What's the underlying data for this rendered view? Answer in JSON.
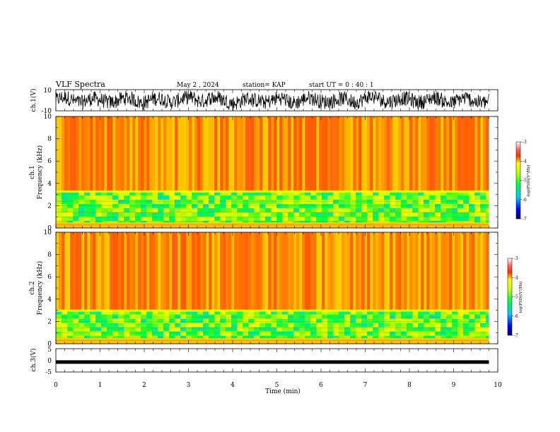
{
  "header": {
    "title": "VLF Spectra",
    "date": "May 2  , 2024",
    "station": "station= KAP",
    "start": "start  UT =   0 : 40 : 1"
  },
  "chart_data": [
    {
      "type": "line",
      "name": "ch1-waveform",
      "ylabel": "ch.1(V)",
      "ylim": [
        -10,
        10
      ],
      "yticks": [
        "10",
        "-10"
      ],
      "xlim": [
        0,
        10
      ],
      "description_values": {
        "range_min": -10,
        "range_max": 10,
        "end_time_min": 9.8
      }
    },
    {
      "type": "heatmap",
      "name": "ch1-spectrogram",
      "ylabel": "ch.1\nFrequency  (kHz)",
      "ylabel_lines": [
        "ch.1",
        "Frequency  (kHz)"
      ],
      "ylim": [
        0,
        10
      ],
      "yticks": [
        "0",
        "2",
        "4",
        "6",
        "8",
        "10"
      ],
      "xlim": [
        0,
        10
      ],
      "colorbar": {
        "label": "log(PSD)(V²/Hz)",
        "ticks": [
          "-3",
          "-4",
          "-5",
          "-6",
          "-7"
        ],
        "range": [
          -7,
          -3
        ]
      },
      "bands": [
        {
          "from_khz": 3.3,
          "to_khz": 10,
          "log_psd": -3.9
        },
        {
          "from_khz": 0.5,
          "to_khz": 3.3,
          "log_psd": -4.9
        },
        {
          "from_khz": 0,
          "to_khz": 0.5,
          "log_psd": -4.0
        }
      ]
    },
    {
      "type": "heatmap",
      "name": "ch2-spectrogram",
      "ylabel_lines": [
        "ch.2",
        "Frequency  (kHz)"
      ],
      "ylim": [
        0,
        10
      ],
      "yticks": [
        "0",
        "2",
        "4",
        "6",
        "8",
        "10"
      ],
      "xlim": [
        0,
        10
      ],
      "colorbar": {
        "label": "log(PSD)(V²/Hz)",
        "ticks": [
          "-3",
          "-4",
          "-5",
          "-6",
          "-7"
        ],
        "range": [
          -7,
          -3
        ]
      },
      "bands": [
        {
          "from_khz": 3.0,
          "to_khz": 10,
          "log_psd": -3.9
        },
        {
          "from_khz": 0.5,
          "to_khz": 3.0,
          "log_psd": -4.9
        },
        {
          "from_khz": 0,
          "to_khz": 0.5,
          "log_psd": -4.0
        }
      ]
    },
    {
      "type": "line",
      "name": "ch3-waveform",
      "ylabel": "ch.3(V)",
      "ylim": [
        -5,
        5
      ],
      "yticks": [
        "5",
        "0",
        "-5"
      ],
      "xlim": [
        0,
        10
      ],
      "level_v": -0.9,
      "xlabel": "Time  (min)",
      "xticks": [
        "0",
        "1",
        "2",
        "3",
        "4",
        "5",
        "6",
        "7",
        "8",
        "9",
        "10"
      ]
    }
  ]
}
